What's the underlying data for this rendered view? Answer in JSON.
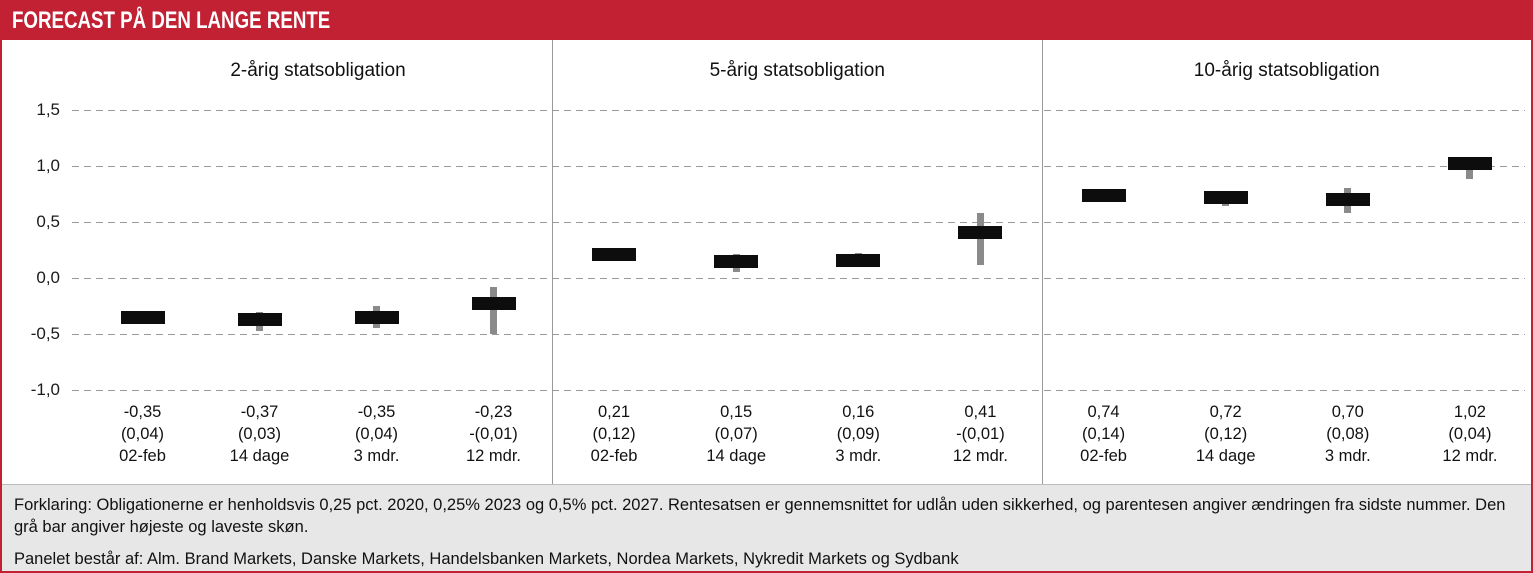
{
  "header": {
    "title": "FORECAST PÅ DEN LANGE RENTE"
  },
  "colors": {
    "accent_red": "#c22033",
    "footer_bg": "#e7e7e7",
    "bar_black": "#0d0d0d",
    "whisker_gray": "#8a8a8a",
    "gridline_gray": "#9a9a9a"
  },
  "footer": {
    "line1": "Forklaring: Obligationerne er henholdsvis 0,25 pct. 2020, 0,25% 2023 og 0,5% pct. 2027. Rentesatsen er gennemsnittet for udlån uden sikkerhed, og parentesen angiver ændringen fra sidste nummer. Den grå bar angiver højeste og laveste skøn.",
    "line2": "Panelet består af: Alm. Brand Markets, Danske Markets, Handelsbanken Markets, Nordea Markets, Nykredit Markets og Sydbank"
  },
  "chart_data": {
    "type": "bar",
    "title": "Forecast på den lange rente",
    "ylim": [
      -1.0,
      1.5
    ],
    "yticks": [
      1.5,
      1.0,
      0.5,
      0.0,
      -0.5,
      -1.0
    ],
    "ytick_labels": [
      "1,5",
      "1,0",
      "0,5",
      "0,0",
      "-0,5",
      "-1,0"
    ],
    "grid": "dashed-horizontal",
    "legend_position": "none",
    "panels": [
      {
        "title": "2-årig statsobligation",
        "points": [
          {
            "period_label": "02-feb",
            "value": -0.35,
            "value_label": "-0,35",
            "change_label": "(0,04)",
            "low": -0.35,
            "high": -0.35
          },
          {
            "period_label": "14 dage",
            "value": -0.37,
            "value_label": "-0,37",
            "change_label": "(0,03)",
            "low": -0.47,
            "high": -0.3
          },
          {
            "period_label": "3 mdr.",
            "value": -0.35,
            "value_label": "-0,35",
            "change_label": "(0,04)",
            "low": -0.45,
            "high": -0.25
          },
          {
            "period_label": "12 mdr.",
            "value": -0.23,
            "value_label": "-0,23",
            "change_label": "-(0,01)",
            "low": -0.5,
            "high": -0.08
          }
        ]
      },
      {
        "title": "5-årig statsobligation",
        "points": [
          {
            "period_label": "02-feb",
            "value": 0.21,
            "value_label": "0,21",
            "change_label": "(0,12)",
            "low": 0.21,
            "high": 0.21
          },
          {
            "period_label": "14 dage",
            "value": 0.15,
            "value_label": "0,15",
            "change_label": "(0,07)",
            "low": 0.05,
            "high": 0.21
          },
          {
            "period_label": "3 mdr.",
            "value": 0.16,
            "value_label": "0,16",
            "change_label": "(0,09)",
            "low": 0.1,
            "high": 0.22
          },
          {
            "period_label": "12 mdr.",
            "value": 0.41,
            "value_label": "0,41",
            "change_label": "-(0,01)",
            "low": 0.12,
            "high": 0.58
          }
        ]
      },
      {
        "title": "10-årig statsobligation",
        "points": [
          {
            "period_label": "02-feb",
            "value": 0.74,
            "value_label": "0,74",
            "change_label": "(0,14)",
            "low": 0.74,
            "high": 0.74
          },
          {
            "period_label": "14 dage",
            "value": 0.72,
            "value_label": "0,72",
            "change_label": "(0,12)",
            "low": 0.64,
            "high": 0.76
          },
          {
            "period_label": "3 mdr.",
            "value": 0.7,
            "value_label": "0,70",
            "change_label": "(0,08)",
            "low": 0.58,
            "high": 0.8
          },
          {
            "period_label": "12 mdr.",
            "value": 1.02,
            "value_label": "1,02",
            "change_label": "(0,04)",
            "low": 0.88,
            "high": 1.06
          }
        ]
      }
    ]
  }
}
